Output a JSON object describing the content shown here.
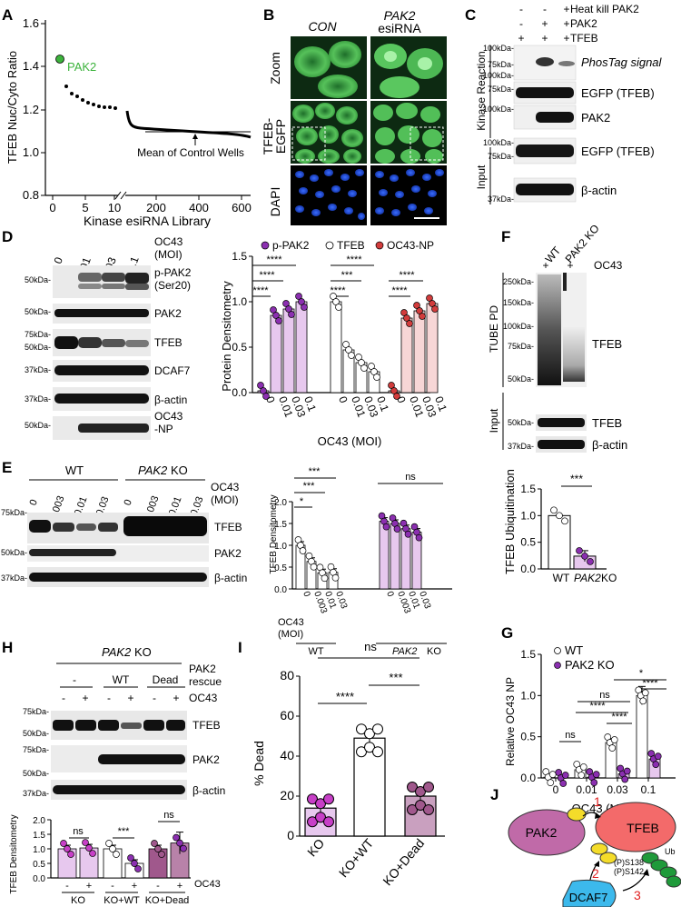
{
  "panel_letters": [
    "A",
    "B",
    "C",
    "D",
    "E",
    "F",
    "G",
    "H",
    "I",
    "J"
  ],
  "panelA": {
    "ylabel": "TFEB Nuc/Cyto Ratio",
    "xlabel": "Kinase esiRNA Library",
    "yticks": [
      "0.8",
      "1.0",
      "1.2",
      "1.4",
      "1.6"
    ],
    "xticks": [
      "0",
      "5",
      "10",
      "200",
      "400",
      "600"
    ],
    "highlight": "PAK2",
    "highlight_color": "#3cb33c",
    "annotation": "Mean of Control Wells"
  },
  "panelB": {
    "col1": "CON",
    "col2a": "PAK2",
    "col2b": "esiRNA",
    "row_zoom": "Zoom",
    "row_tfeb": "TFEB-",
    "row_egfp": "EGFP",
    "row_dapi": "DAPI"
  },
  "panelC": {
    "cond1": "Heat kill PAK2",
    "cond2": "PAK2",
    "cond3": "TFEB",
    "signs": [
      [
        "-",
        "-",
        "+"
      ],
      [
        "-",
        "+",
        "+"
      ],
      [
        "+",
        "+",
        "+"
      ]
    ],
    "group1": "Kinase Reaction",
    "group2": "Input",
    "bands": [
      "PhosTag signal",
      "EGFP (TFEB)",
      "PAK2",
      "EGFP (TFEB)",
      "β-actin"
    ],
    "markers": [
      "100kDa-",
      "75kDa-",
      "100kDa-",
      "75kDa-",
      "100kDa-",
      "100kDa-",
      "75kDa-",
      "37kDa-"
    ]
  },
  "panelD": {
    "lanes": [
      "0",
      "0.01",
      "0.03",
      "0.1"
    ],
    "moi_label_1": "OC43",
    "moi_label_2": "(MOI)",
    "bands": [
      "p-PAK2",
      "(Ser20)",
      "PAK2",
      "TFEB",
      "DCAF7",
      "β-actin",
      "OC43",
      "-NP"
    ],
    "markers": [
      "50kDa-",
      "50kDa-",
      "75kDa-",
      "50kDa-",
      "37kDa-",
      "37kDa-",
      "50kDa-"
    ],
    "legend": [
      "p-PAK2",
      "TFEB",
      "OC43-NP"
    ],
    "colors": {
      "ppak2": "#8b2fb0",
      "tfeb": "#ffffff",
      "np": "#d23c3c",
      "fill_ppak2": "#e7c8ee",
      "fill_np": "#f7d6d6"
    },
    "sig": [
      "****",
      "****",
      "****",
      "****",
      "***",
      "****",
      "****",
      "****"
    ]
  },
  "chart_data": [
    {
      "type": "bar",
      "panel": "D",
      "ylabel": "Protein Densitometry",
      "xlabel": "OC43 (MOI)",
      "ylim": [
        0,
        1.5
      ],
      "yticks": [
        "0.0",
        "0.5",
        "1.0",
        "1.5"
      ],
      "categories": [
        "0",
        "0.01",
        "0.03",
        "0.1"
      ],
      "series": [
        {
          "name": "p-PAK2",
          "values": [
            0.02,
            0.85,
            0.92,
            1.0
          ]
        },
        {
          "name": "TFEB",
          "values": [
            1.0,
            0.47,
            0.33,
            0.23
          ]
        },
        {
          "name": "OC43-NP",
          "values": [
            0.02,
            0.82,
            0.9,
            0.98
          ]
        }
      ]
    },
    {
      "type": "bar",
      "panel": "E",
      "ylabel": "TFEB Densitometry",
      "ylim": [
        0,
        2.0
      ],
      "yticks": [
        "0.0",
        "0.5",
        "1.0",
        "1.5",
        "2.0"
      ],
      "categories": [
        "0",
        "0.003",
        "0.01",
        "0.03"
      ],
      "series": [
        {
          "name": "WT",
          "values": [
            1.0,
            0.63,
            0.37,
            0.38
          ]
        },
        {
          "name": "PAK2 KO",
          "values": [
            1.55,
            1.5,
            1.38,
            1.3
          ]
        }
      ]
    },
    {
      "type": "bar",
      "panel": "F",
      "ylabel": "TFEB Ubiquitination",
      "ylim": [
        0,
        1.5
      ],
      "yticks": [
        "0.0",
        "0.5",
        "1.0",
        "1.5"
      ],
      "categories": [
        "WT",
        "PAK2 KO"
      ],
      "values": [
        1.0,
        0.24
      ]
    },
    {
      "type": "bar",
      "panel": "G",
      "ylabel": "Relative OC43 NP",
      "xlabel": "OC43 (MOI)",
      "ylim": [
        0,
        1.5
      ],
      "yticks": [
        "0.0",
        "0.5",
        "1.0",
        "1.5"
      ],
      "categories": [
        "0",
        "0.01",
        "0.03",
        "0.1"
      ],
      "series": [
        {
          "name": "WT",
          "values": [
            0.01,
            0.1,
            0.43,
            1.0
          ]
        },
        {
          "name": "PAK2 KO",
          "values": [
            0.0,
            0.01,
            0.05,
            0.23
          ]
        }
      ]
    },
    {
      "type": "bar",
      "panel": "H",
      "ylabel": "TFEB Densitometry",
      "ylim": [
        0,
        2.0
      ],
      "yticks": [
        "0.0",
        "0.5",
        "1.0",
        "1.5",
        "2.0"
      ],
      "categories": [
        "KO -",
        "KO +",
        "KO+WT -",
        "KO+WT +",
        "KO+Dead -",
        "KO+Dead +"
      ],
      "values": [
        1.0,
        1.03,
        1.0,
        0.5,
        1.0,
        1.2
      ]
    },
    {
      "type": "bar",
      "panel": "I",
      "ylabel": "% Dead",
      "ylim": [
        0,
        80
      ],
      "yticks": [
        "0",
        "20",
        "40",
        "60",
        "80"
      ],
      "categories": [
        "KO",
        "KO+WT",
        "KO+Dead"
      ],
      "values": [
        14,
        49,
        20
      ]
    }
  ],
  "panelE": {
    "wt": "WT",
    "ko": "PAK2",
    "ko_suffix": " KO",
    "lanes": [
      "0",
      "0.003",
      "0.01",
      "0.03",
      "0",
      "0.003",
      "0.01",
      "0.03"
    ],
    "moi_1": "OC43",
    "moi_2": "(MOI)",
    "bands": [
      "TFEB",
      "PAK2",
      "β-actin"
    ],
    "markers": [
      "75kDa-",
      "50kDa-",
      "37kDa-"
    ],
    "sig": [
      "***",
      "***",
      "*",
      "ns"
    ],
    "moi_row_1": "OC43",
    "moi_row_2": "(MOI)",
    "group_wt": "WT",
    "group_ko": "PAK2",
    "group_ko_suffix": "KO",
    "fill_ko": "#e7c8ee"
  },
  "panelF": {
    "lanes": [
      "WT",
      "PAK2 KO"
    ],
    "plus": [
      "+",
      "+"
    ],
    "oc43": "OC43",
    "group1": "TUBE PD",
    "group2": "Input",
    "bands": [
      "TFEB",
      "TFEB",
      "β-actin"
    ],
    "markers": [
      "250kDa-",
      "150kDa-",
      "100kDa-",
      "75kDa-",
      "50kDa-",
      "50kDa-",
      "37kDa-"
    ],
    "sig": "***",
    "xl1": "WT",
    "xl2": "PAK2",
    "xl3": " KO"
  },
  "panelG": {
    "legend": [
      "WT",
      "PAK2 KO"
    ],
    "sig": [
      "*",
      "****",
      "ns",
      "****",
      "****",
      "ns"
    ]
  },
  "panelH": {
    "ko_title": "PAK2",
    "ko_suffix": " KO",
    "rescue_1": "PAK2",
    "rescue_2": "rescue",
    "groups": [
      "-",
      "WT",
      "Dead"
    ],
    "oc43": "OC43",
    "signs": [
      "-",
      "+",
      "-",
      "+",
      "-",
      "+"
    ],
    "bands": [
      "TFEB",
      "PAK2",
      "β-actin"
    ],
    "markers": [
      "75kDa-",
      "50kDa-",
      "75kDa-",
      "50kDa-",
      "37kDa-"
    ],
    "sig": [
      "ns",
      "***",
      "ns"
    ],
    "xgroups": [
      "KO",
      "KO+WT",
      "KO+Dead"
    ],
    "oc43_axis": "OC43",
    "colors": {
      "ko": "#e7c8ee",
      "wt": "#ffffff",
      "dead": "#a0588c"
    }
  },
  "panelI": {
    "sig": [
      "ns",
      "****",
      "***"
    ],
    "color_ko": "#c73fc7",
    "color_dead": "#a0588c"
  },
  "panelJ": {
    "pak2": "PAK2",
    "tfeb": "TFEB",
    "dcaf7": "DCAF7",
    "s138": "(P)S138",
    "s142": "(P)S142",
    "ub": "Ub",
    "steps": [
      "1",
      "2",
      "3"
    ],
    "colors": {
      "pak2": "#c06aa8",
      "tfeb": "#f36a6a",
      "dcaf7": "#3cb9ec",
      "yellow": "#f4dc2a",
      "green": "#1f9a3a",
      "step": "#e02020"
    }
  }
}
